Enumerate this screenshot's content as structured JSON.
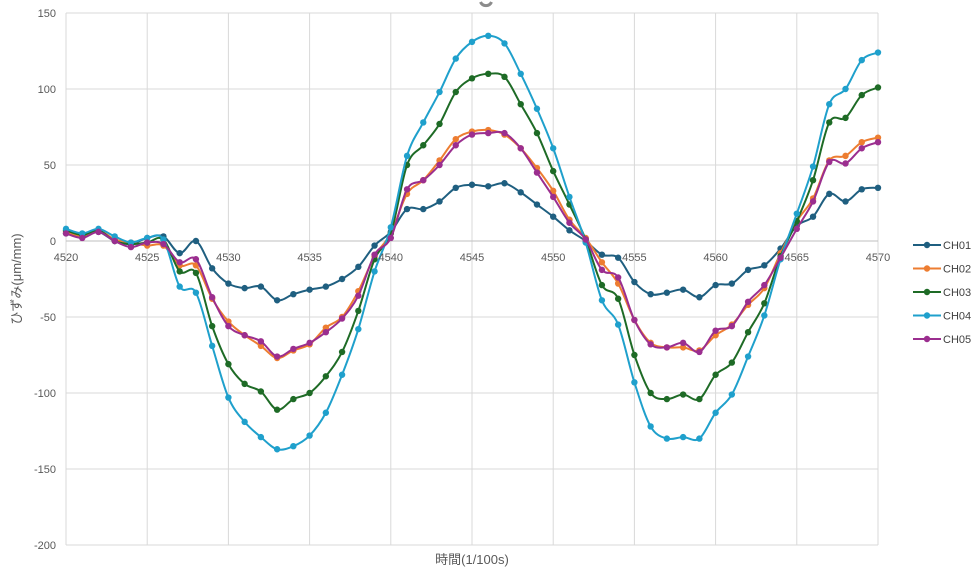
{
  "chart_data": {
    "type": "line",
    "xlabel": "時間(1/100s)",
    "ylabel": "ひずみ(μm/mm)",
    "xlim": [
      4520,
      4570
    ],
    "ylim": [
      -200,
      150
    ],
    "x_ticks": [
      4520,
      4525,
      4530,
      4535,
      4540,
      4545,
      4550,
      4555,
      4560,
      4565,
      4570
    ],
    "y_ticks": [
      -200,
      -150,
      -100,
      -50,
      0,
      50,
      100,
      150
    ],
    "grid": true,
    "legend": "right",
    "x": [
      4520,
      4521,
      4522,
      4523,
      4524,
      4525,
      4526,
      4527,
      4528,
      4529,
      4530,
      4531,
      4532,
      4533,
      4534,
      4535,
      4536,
      4537,
      4538,
      4539,
      4540,
      4541,
      4542,
      4543,
      4544,
      4545,
      4546,
      4547,
      4548,
      4549,
      4550,
      4551,
      4552,
      4553,
      4554,
      4555,
      4556,
      4557,
      4558,
      4559,
      4560,
      4561,
      4562,
      4563,
      4564,
      4565,
      4566,
      4567,
      4568,
      4569,
      4570
    ],
    "series": [
      {
        "name": "CH01",
        "color": "#1f5f80",
        "values": [
          5,
          4,
          6,
          0,
          -2,
          2,
          3,
          -8,
          0,
          -18,
          -28,
          -31,
          -30,
          -39,
          -35,
          -32,
          -30,
          -25,
          -17,
          -3,
          6,
          21,
          21,
          26,
          35,
          37,
          36,
          38,
          32,
          24,
          16,
          7,
          0,
          -9,
          -11,
          -27,
          -35,
          -34,
          -32,
          -37,
          -29,
          -28,
          -19,
          -16,
          -5,
          10,
          16,
          31,
          26,
          34,
          35
        ]
      },
      {
        "name": "CH02",
        "color": "#ed7d31",
        "values": [
          6,
          3,
          7,
          1,
          -1,
          -3,
          -3,
          -16,
          -16,
          -38,
          -53,
          -62,
          -69,
          -77,
          -72,
          -68,
          -57,
          -50,
          -33,
          -10,
          5,
          31,
          40,
          53,
          67,
          72,
          73,
          70,
          61,
          48,
          33,
          14,
          2,
          -14,
          -28,
          -52,
          -67,
          -70,
          -70,
          -72,
          -62,
          -55,
          -42,
          -31,
          -8,
          13,
          28,
          53,
          56,
          65,
          68
        ]
      },
      {
        "name": "CH03",
        "color": "#1e6b26",
        "values": [
          7,
          4,
          7,
          0,
          -2,
          -1,
          1,
          -20,
          -21,
          -56,
          -81,
          -94,
          -99,
          -111,
          -104,
          -100,
          -89,
          -73,
          -46,
          -12,
          5,
          50,
          63,
          77,
          98,
          107,
          110,
          108,
          90,
          71,
          46,
          24,
          1,
          -29,
          -38,
          -75,
          -100,
          -104,
          -101,
          -104,
          -88,
          -80,
          -60,
          -41,
          -10,
          13,
          40,
          78,
          81,
          96,
          101
        ]
      },
      {
        "name": "CH04",
        "color": "#1fa0cc",
        "values": [
          8,
          5,
          8,
          3,
          -1,
          2,
          1,
          -30,
          -34,
          -69,
          -103,
          -119,
          -129,
          -137,
          -135,
          -128,
          -113,
          -88,
          -58,
          -20,
          9,
          56,
          78,
          98,
          120,
          131,
          135,
          130,
          110,
          87,
          61,
          29,
          -1,
          -39,
          -55,
          -93,
          -122,
          -130,
          -129,
          -130,
          -113,
          -101,
          -76,
          -49,
          -12,
          18,
          49,
          90,
          100,
          119,
          124
        ]
      },
      {
        "name": "CH05",
        "color": "#9b2e8f",
        "values": [
          5,
          2,
          6,
          0,
          -4,
          -1,
          -2,
          -14,
          -12,
          -37,
          -56,
          -62,
          -66,
          -76,
          -71,
          -67,
          -60,
          -51,
          -36,
          -9,
          2,
          34,
          40,
          50,
          63,
          70,
          71,
          71,
          61,
          45,
          29,
          12,
          1,
          -19,
          -24,
          -52,
          -68,
          -70,
          -67,
          -73,
          -59,
          -56,
          -40,
          -29,
          -11,
          8,
          26,
          52,
          51,
          61,
          65
        ]
      }
    ]
  }
}
